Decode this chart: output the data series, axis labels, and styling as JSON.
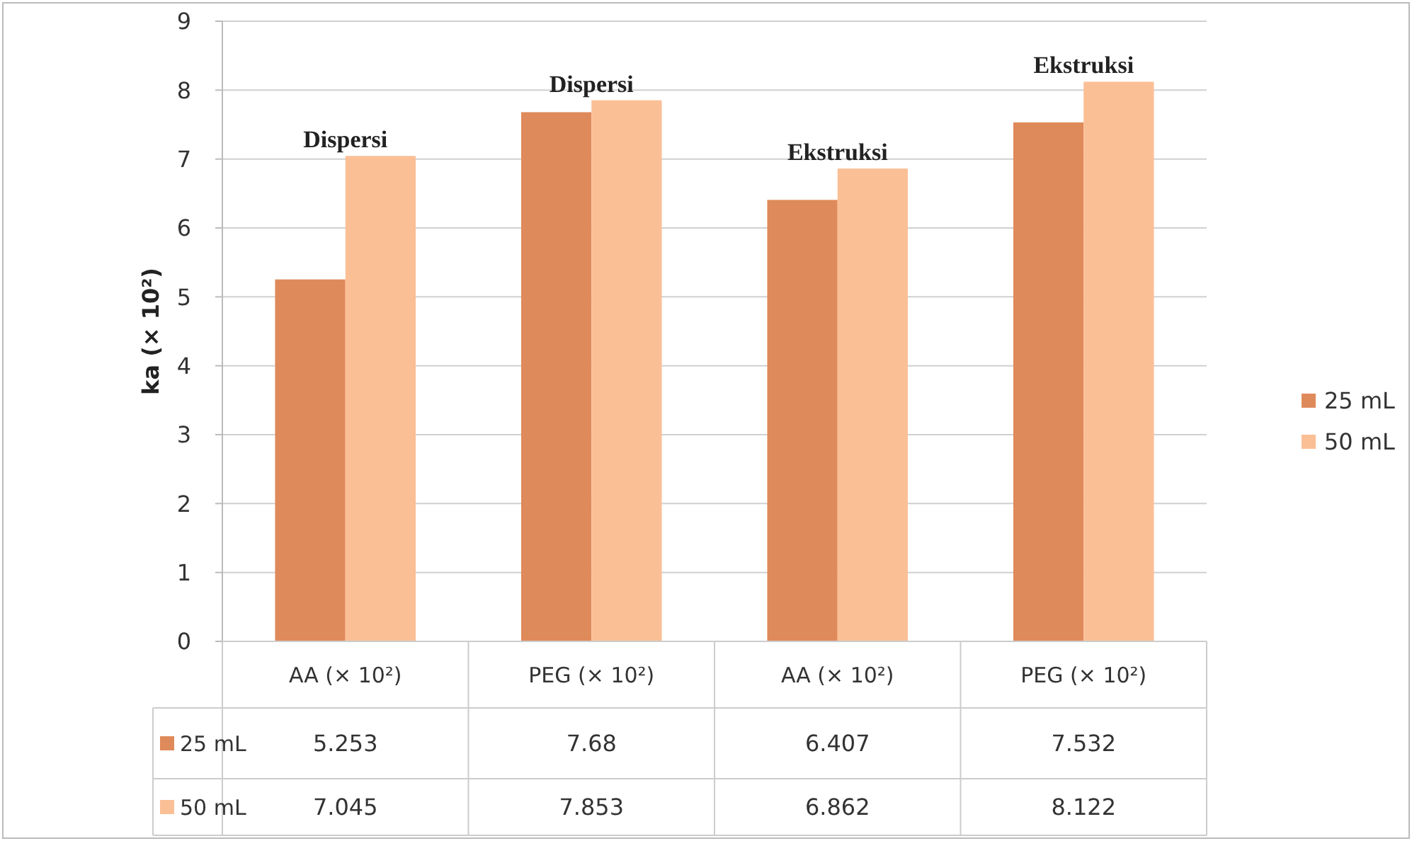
{
  "chart_data": {
    "type": "bar",
    "categories": [
      "AA (× 10²)",
      "PEG (× 10²)",
      "AA (× 10²)",
      "PEG (× 10²)"
    ],
    "series": [
      {
        "name": "25 mL",
        "color": "#df8a5a",
        "values": [
          5.253,
          7.68,
          6.407,
          7.532
        ]
      },
      {
        "name": "50 mL",
        "color": "#fbbf96",
        "values": [
          7.045,
          7.853,
          6.862,
          8.122
        ]
      }
    ],
    "ylabel": "ka (× 10²)",
    "annotations": [
      "Dispersi",
      "Dispersi",
      "Ekstruksi",
      "Ekstruksi"
    ],
    "ylim": [
      0,
      9
    ],
    "yticks": [
      0,
      1,
      2,
      3,
      4,
      5,
      6,
      7,
      8,
      9
    ],
    "grid": "y",
    "legend": "right",
    "data_labels": true
  }
}
